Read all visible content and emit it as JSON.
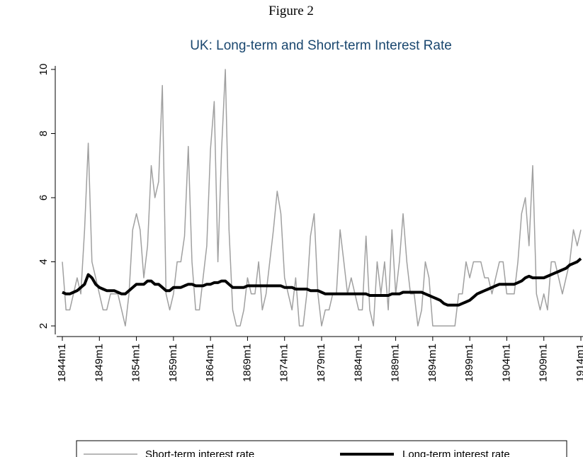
{
  "chart_data": {
    "type": "line",
    "figure_label": "Figure 2",
    "title": "UK: Long-term and Short-term Interest Rate",
    "x": [
      "1844m1",
      "1844m7",
      "1845m1",
      "1845m7",
      "1846m1",
      "1846m7",
      "1847m1",
      "1847m7",
      "1848m1",
      "1848m7",
      "1849m1",
      "1849m7",
      "1850m1",
      "1850m7",
      "1851m1",
      "1851m7",
      "1852m1",
      "1852m7",
      "1853m1",
      "1853m7",
      "1854m1",
      "1854m7",
      "1855m1",
      "1855m7",
      "1856m1",
      "1856m7",
      "1857m1",
      "1857m7",
      "1858m1",
      "1858m7",
      "1859m1",
      "1859m7",
      "1860m1",
      "1860m7",
      "1861m1",
      "1861m7",
      "1862m1",
      "1862m7",
      "1863m1",
      "1863m7",
      "1864m1",
      "1864m7",
      "1865m1",
      "1865m7",
      "1866m1",
      "1866m7",
      "1867m1",
      "1867m7",
      "1868m1",
      "1868m7",
      "1869m1",
      "1869m7",
      "1870m1",
      "1870m7",
      "1871m1",
      "1871m7",
      "1872m1",
      "1872m7",
      "1873m1",
      "1873m7",
      "1874m1",
      "1874m7",
      "1875m1",
      "1875m7",
      "1876m1",
      "1876m7",
      "1877m1",
      "1877m7",
      "1878m1",
      "1878m7",
      "1879m1",
      "1879m7",
      "1880m1",
      "1880m7",
      "1881m1",
      "1881m7",
      "1882m1",
      "1882m7",
      "1883m1",
      "1883m7",
      "1884m1",
      "1884m7",
      "1885m1",
      "1885m7",
      "1886m1",
      "1886m7",
      "1887m1",
      "1887m7",
      "1888m1",
      "1888m7",
      "1889m1",
      "1889m7",
      "1890m1",
      "1890m7",
      "1891m1",
      "1891m7",
      "1892m1",
      "1892m7",
      "1893m1",
      "1893m7",
      "1894m1",
      "1894m7",
      "1895m1",
      "1895m7",
      "1896m1",
      "1896m7",
      "1897m1",
      "1897m7",
      "1898m1",
      "1898m7",
      "1899m1",
      "1899m7",
      "1900m1",
      "1900m7",
      "1901m1",
      "1901m7",
      "1902m1",
      "1902m7",
      "1903m1",
      "1903m7",
      "1904m1",
      "1904m7",
      "1905m1",
      "1905m7",
      "1906m1",
      "1906m7",
      "1907m1",
      "1907m7",
      "1908m1",
      "1908m7",
      "1909m1",
      "1909m7",
      "1910m1",
      "1910m7",
      "1911m1",
      "1911m7",
      "1912m1",
      "1912m7",
      "1913m1",
      "1913m7",
      "1914m1"
    ],
    "series": [
      {
        "name": "Short-term interest rate",
        "color": "#a0a0a0",
        "width": 1.5,
        "values": [
          4,
          2.5,
          2.5,
          3,
          3.5,
          3,
          5,
          7.7,
          4,
          3.5,
          3,
          2.5,
          2.5,
          3,
          3,
          3,
          2.5,
          2,
          3,
          5,
          5.5,
          5,
          3.5,
          4.5,
          7,
          6,
          6.5,
          9.5,
          3,
          2.5,
          3,
          4,
          4,
          4.8,
          7.6,
          4,
          2.5,
          2.5,
          3.5,
          4.5,
          7.5,
          9,
          4,
          7.5,
          10,
          5,
          2.5,
          2,
          2,
          2.5,
          3.5,
          3,
          3,
          4,
          2.5,
          3,
          4,
          5,
          6.2,
          5.5,
          3.5,
          3,
          2.5,
          3.5,
          2,
          2,
          3,
          4.8,
          5.5,
          3,
          2,
          2.5,
          2.5,
          3,
          3,
          5,
          4,
          3,
          3.5,
          3,
          2.5,
          2.5,
          4.8,
          2.5,
          2,
          4,
          3,
          4,
          2.5,
          5,
          3,
          4,
          5.5,
          4,
          3,
          3,
          2,
          2.5,
          4,
          3.5,
          2,
          2,
          2,
          2,
          2,
          2,
          2,
          3,
          3,
          4,
          3.5,
          4,
          4,
          4,
          3.5,
          3.5,
          3,
          3.5,
          4,
          4,
          3,
          3,
          3,
          4,
          5.5,
          6,
          4.5,
          7,
          3,
          2.5,
          3,
          2.5,
          4,
          4,
          3.5,
          3,
          3.5,
          4,
          5,
          4.5,
          5
        ]
      },
      {
        "name": "Long-term interest rate",
        "color": "#000000",
        "width": 4,
        "values": [
          3.05,
          3.0,
          3.0,
          3.05,
          3.1,
          3.2,
          3.3,
          3.6,
          3.5,
          3.3,
          3.2,
          3.15,
          3.1,
          3.1,
          3.1,
          3.05,
          3.0,
          3.0,
          3.1,
          3.2,
          3.3,
          3.3,
          3.3,
          3.4,
          3.4,
          3.3,
          3.3,
          3.2,
          3.1,
          3.1,
          3.2,
          3.2,
          3.2,
          3.25,
          3.3,
          3.3,
          3.25,
          3.25,
          3.25,
          3.3,
          3.3,
          3.35,
          3.35,
          3.4,
          3.4,
          3.3,
          3.2,
          3.2,
          3.2,
          3.2,
          3.25,
          3.25,
          3.25,
          3.25,
          3.25,
          3.25,
          3.25,
          3.25,
          3.25,
          3.25,
          3.2,
          3.2,
          3.2,
          3.15,
          3.15,
          3.15,
          3.15,
          3.1,
          3.1,
          3.1,
          3.05,
          3.0,
          3.0,
          3.0,
          3.0,
          3.0,
          3.0,
          3.0,
          3.0,
          3.0,
          3.0,
          3.0,
          3.0,
          2.95,
          2.95,
          2.95,
          2.95,
          2.95,
          2.95,
          3.0,
          3.0,
          3.0,
          3.05,
          3.05,
          3.05,
          3.05,
          3.05,
          3.05,
          3.0,
          2.95,
          2.9,
          2.85,
          2.8,
          2.7,
          2.65,
          2.65,
          2.65,
          2.65,
          2.7,
          2.75,
          2.8,
          2.9,
          3.0,
          3.05,
          3.1,
          3.15,
          3.2,
          3.25,
          3.3,
          3.3,
          3.3,
          3.3,
          3.3,
          3.35,
          3.4,
          3.5,
          3.55,
          3.5,
          3.5,
          3.5,
          3.5,
          3.55,
          3.6,
          3.65,
          3.7,
          3.75,
          3.8,
          3.9,
          3.95,
          4.0,
          4.1
        ]
      }
    ],
    "xlim": [
      "1844m1",
      "1914m1"
    ],
    "xticks": [
      "1844m1",
      "1849m1",
      "1854m1",
      "1859m1",
      "1864m1",
      "1869m1",
      "1874m1",
      "1879m1",
      "1884m1",
      "1889m1",
      "1894m1",
      "1899m1",
      "1904m1",
      "1909m1",
      "1914m1"
    ],
    "ylim": [
      2,
      10
    ],
    "yticks": [
      2,
      4,
      6,
      8,
      10
    ],
    "grid": false,
    "legend": "bottom"
  }
}
